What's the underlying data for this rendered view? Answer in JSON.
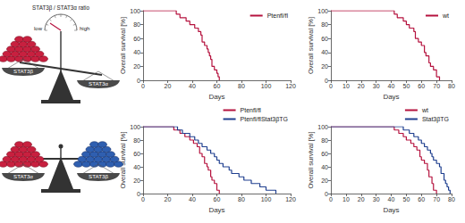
{
  "chart_data": [
    {
      "type": "line",
      "line_style": "steps",
      "x_label": "Days",
      "y_label": "Overall survival [%]",
      "xlim": [
        0,
        120
      ],
      "xticks": [
        0,
        20,
        40,
        60,
        80,
        100,
        120
      ],
      "ylim": [
        0,
        100
      ],
      "yticks": [
        0,
        20,
        40,
        60,
        80,
        100
      ],
      "grid": false,
      "legend": "upper right",
      "series": [
        {
          "name": "Ptenfl/fl",
          "color": "#b5123e",
          "x": [
            0,
            27,
            30,
            35,
            38,
            42,
            45,
            47,
            48,
            50,
            52,
            53,
            54,
            55,
            56,
            58,
            60,
            61,
            62
          ],
          "values": [
            100,
            95,
            90,
            85,
            80,
            75,
            70,
            65,
            55,
            50,
            45,
            40,
            35,
            30,
            20,
            15,
            10,
            5,
            0
          ]
        }
      ]
    },
    {
      "type": "line",
      "line_style": "steps",
      "x_label": "Days",
      "y_label": "Overall survival [%]",
      "xlim": [
        0,
        80
      ],
      "xticks": [
        0,
        10,
        20,
        30,
        40,
        50,
        60,
        70,
        80
      ],
      "ylim": [
        0,
        100
      ],
      "yticks": [
        0,
        20,
        40,
        60,
        80,
        100
      ],
      "grid": false,
      "legend": "upper right",
      "series": [
        {
          "name": "wt",
          "color": "#b5123e",
          "x": [
            0,
            42,
            44,
            48,
            50,
            52,
            55,
            56,
            58,
            60,
            62,
            63,
            65,
            66,
            68,
            70,
            72
          ],
          "values": [
            100,
            95,
            90,
            85,
            80,
            75,
            70,
            60,
            55,
            50,
            40,
            35,
            25,
            20,
            15,
            5,
            0
          ]
        }
      ]
    },
    {
      "type": "line",
      "line_style": "steps",
      "x_label": "Days",
      "y_label": "Overall survival [%]",
      "xlim": [
        0,
        120
      ],
      "xticks": [
        0,
        20,
        40,
        60,
        80,
        100,
        120
      ],
      "ylim": [
        0,
        100
      ],
      "yticks": [
        0,
        20,
        40,
        60,
        80,
        100
      ],
      "grid": false,
      "legend": "upper right",
      "series": [
        {
          "name": "Ptenfl/fl",
          "color": "#b5123e",
          "x": [
            0,
            25,
            30,
            34,
            38,
            41,
            44,
            46,
            48,
            50,
            52,
            53,
            55,
            56,
            58,
            60,
            62
          ],
          "values": [
            100,
            95,
            90,
            85,
            80,
            75,
            70,
            60,
            55,
            45,
            40,
            35,
            25,
            20,
            15,
            5,
            0
          ]
        },
        {
          "name": "Ptenfl/flStat3βTG",
          "color": "#1f3f8f",
          "x": [
            0,
            28,
            32,
            38,
            42,
            45,
            48,
            52,
            55,
            58,
            60,
            62,
            65,
            70,
            72,
            78,
            82,
            88,
            95,
            100,
            108
          ],
          "values": [
            100,
            95,
            90,
            85,
            80,
            75,
            70,
            65,
            60,
            55,
            50,
            45,
            40,
            35,
            30,
            25,
            20,
            15,
            10,
            5,
            0
          ]
        }
      ]
    },
    {
      "type": "line",
      "line_style": "steps",
      "x_label": "Days",
      "y_label": "Overall survival [%]",
      "xlim": [
        0,
        80
      ],
      "xticks": [
        0,
        10,
        20,
        30,
        40,
        50,
        60,
        70,
        80
      ],
      "ylim": [
        0,
        100
      ],
      "yticks": [
        0,
        20,
        40,
        60,
        80,
        100
      ],
      "grid": false,
      "legend": "upper right",
      "series": [
        {
          "name": "wt",
          "color": "#b5123e",
          "x": [
            0,
            42,
            45,
            48,
            50,
            53,
            55,
            57,
            59,
            60,
            62,
            64,
            65,
            67,
            68,
            70
          ],
          "values": [
            100,
            95,
            90,
            85,
            80,
            75,
            70,
            65,
            55,
            50,
            45,
            35,
            25,
            15,
            5,
            0
          ]
        },
        {
          "name": "Stat3βTG",
          "color": "#1f3f8f",
          "x": [
            0,
            48,
            52,
            55,
            58,
            60,
            62,
            64,
            66,
            67,
            68,
            70,
            72,
            73,
            75,
            76,
            77,
            78,
            79
          ],
          "values": [
            100,
            95,
            90,
            85,
            80,
            75,
            70,
            65,
            60,
            55,
            50,
            45,
            40,
            30,
            20,
            15,
            10,
            5,
            0
          ]
        }
      ]
    }
  ],
  "diagram": {
    "top": {
      "gauge_title": "STAT3β / STAT3α ratio",
      "low": "low",
      "high": "high",
      "left_pan": "STAT3β",
      "right_pan": "STAT3α"
    },
    "bottom": {
      "left_pan": "STAT3α",
      "right_pan": "STAT3β"
    }
  }
}
